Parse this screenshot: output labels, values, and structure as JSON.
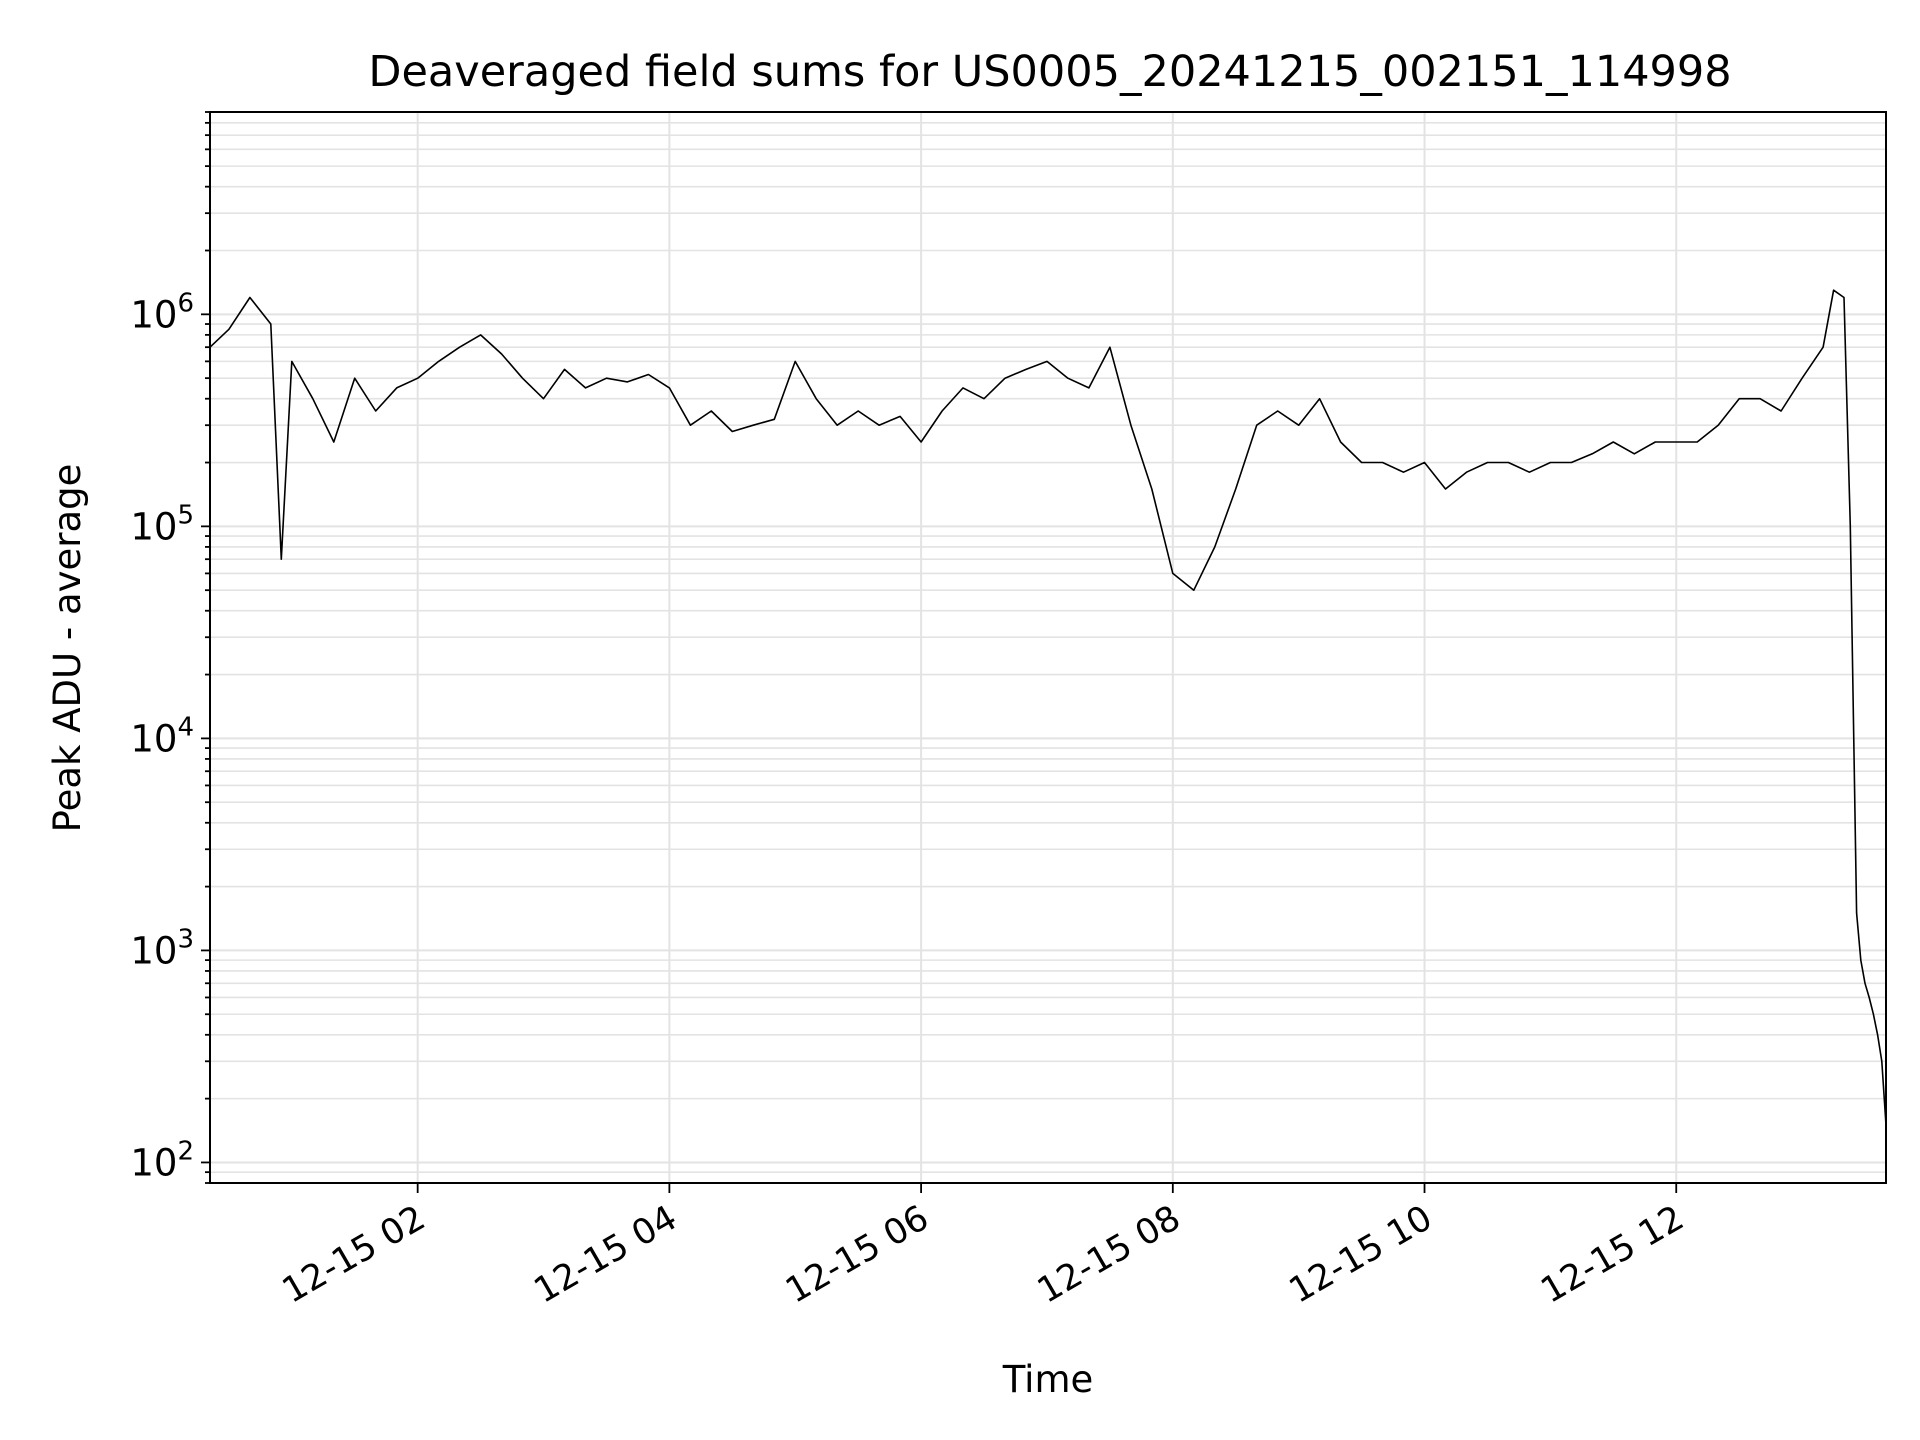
{
  "chart_data": {
    "type": "line",
    "title": "Deaveraged field sums for US0005_20241215_002151_114998",
    "xlabel": "Time",
    "ylabel": "Peak ADU - average",
    "yscale": "log",
    "ylim": [
      80,
      9000000
    ],
    "xlim": [
      "2024-12-15 00:21",
      "2024-12-15 13:40"
    ],
    "grid": true,
    "line_color": "#000000",
    "xticks": [
      {
        "t": "2024-12-15 02:00",
        "label": "12-15 02"
      },
      {
        "t": "2024-12-15 04:00",
        "label": "12-15 04"
      },
      {
        "t": "2024-12-15 06:00",
        "label": "12-15 06"
      },
      {
        "t": "2024-12-15 08:00",
        "label": "12-15 08"
      },
      {
        "t": "2024-12-15 10:00",
        "label": "12-15 10"
      },
      {
        "t": "2024-12-15 12:00",
        "label": "12-15 12"
      }
    ],
    "yticks": [
      {
        "value": 100,
        "base": "10",
        "exp": "2"
      },
      {
        "value": 1000,
        "base": "10",
        "exp": "3"
      },
      {
        "value": 10000,
        "base": "10",
        "exp": "4"
      },
      {
        "value": 100000,
        "base": "10",
        "exp": "5"
      },
      {
        "value": 1000000,
        "base": "10",
        "exp": "6"
      }
    ],
    "series": [
      {
        "x": [
          "2024-12-15 00:21",
          "2024-12-15 00:30",
          "2024-12-15 00:40",
          "2024-12-15 00:50",
          "2024-12-15 00:55",
          "2024-12-15 01:00",
          "2024-12-15 01:10",
          "2024-12-15 01:20",
          "2024-12-15 01:30",
          "2024-12-15 01:40",
          "2024-12-15 01:50",
          "2024-12-15 02:00",
          "2024-12-15 02:10",
          "2024-12-15 02:20",
          "2024-12-15 02:30",
          "2024-12-15 02:40",
          "2024-12-15 02:50",
          "2024-12-15 03:00",
          "2024-12-15 03:10",
          "2024-12-15 03:20",
          "2024-12-15 03:30",
          "2024-12-15 03:40",
          "2024-12-15 03:50",
          "2024-12-15 04:00",
          "2024-12-15 04:10",
          "2024-12-15 04:20",
          "2024-12-15 04:30",
          "2024-12-15 04:40",
          "2024-12-15 04:50",
          "2024-12-15 05:00",
          "2024-12-15 05:10",
          "2024-12-15 05:20",
          "2024-12-15 05:30",
          "2024-12-15 05:40",
          "2024-12-15 05:50",
          "2024-12-15 06:00",
          "2024-12-15 06:10",
          "2024-12-15 06:20",
          "2024-12-15 06:30",
          "2024-12-15 06:40",
          "2024-12-15 06:50",
          "2024-12-15 07:00",
          "2024-12-15 07:10",
          "2024-12-15 07:20",
          "2024-12-15 07:30",
          "2024-12-15 07:40",
          "2024-12-15 07:50",
          "2024-12-15 08:00",
          "2024-12-15 08:10",
          "2024-12-15 08:20",
          "2024-12-15 08:30",
          "2024-12-15 08:40",
          "2024-12-15 08:50",
          "2024-12-15 09:00",
          "2024-12-15 09:10",
          "2024-12-15 09:20",
          "2024-12-15 09:30",
          "2024-12-15 09:40",
          "2024-12-15 09:50",
          "2024-12-15 10:00",
          "2024-12-15 10:10",
          "2024-12-15 10:20",
          "2024-12-15 10:30",
          "2024-12-15 10:40",
          "2024-12-15 10:50",
          "2024-12-15 11:00",
          "2024-12-15 11:10",
          "2024-12-15 11:20",
          "2024-12-15 11:30",
          "2024-12-15 11:40",
          "2024-12-15 11:50",
          "2024-12-15 12:00",
          "2024-12-15 12:10",
          "2024-12-15 12:20",
          "2024-12-15 12:30",
          "2024-12-15 12:40",
          "2024-12-15 12:50",
          "2024-12-15 13:00",
          "2024-12-15 13:10",
          "2024-12-15 13:15",
          "2024-12-15 13:20",
          "2024-12-15 13:23",
          "2024-12-15 13:26",
          "2024-12-15 13:28",
          "2024-12-15 13:30",
          "2024-12-15 13:32",
          "2024-12-15 13:34",
          "2024-12-15 13:36",
          "2024-12-15 13:38",
          "2024-12-15 13:40"
        ],
        "y": [
          700000,
          850000,
          1200000,
          900000,
          70000,
          600000,
          400000,
          250000,
          500000,
          350000,
          450000,
          500000,
          600000,
          700000,
          800000,
          650000,
          500000,
          400000,
          550000,
          450000,
          500000,
          480000,
          520000,
          450000,
          300000,
          350000,
          280000,
          300000,
          320000,
          600000,
          400000,
          300000,
          350000,
          300000,
          330000,
          250000,
          350000,
          450000,
          400000,
          500000,
          550000,
          600000,
          500000,
          450000,
          700000,
          300000,
          150000,
          60000,
          50000,
          80000,
          150000,
          300000,
          350000,
          300000,
          400000,
          250000,
          200000,
          200000,
          180000,
          200000,
          150000,
          180000,
          200000,
          200000,
          180000,
          200000,
          200000,
          220000,
          250000,
          220000,
          250000,
          250000,
          250000,
          300000,
          400000,
          400000,
          350000,
          500000,
          700000,
          1300000,
          1200000,
          100000,
          1500,
          900,
          700,
          600,
          500,
          400,
          300,
          150
        ]
      }
    ]
  }
}
